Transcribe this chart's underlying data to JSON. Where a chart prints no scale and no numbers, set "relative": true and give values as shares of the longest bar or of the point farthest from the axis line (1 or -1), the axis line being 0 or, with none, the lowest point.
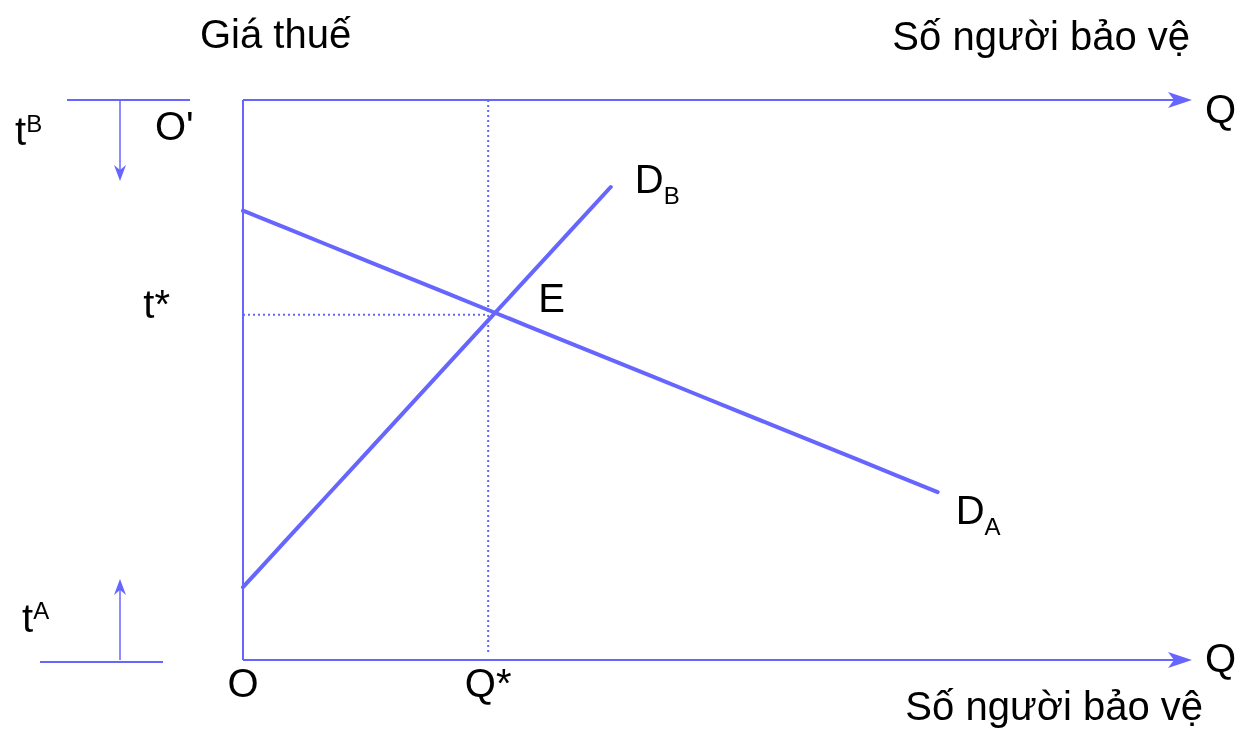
{
  "chart_data": {
    "type": "line",
    "relative": true,
    "ylabel": "Giá thuế",
    "xlabel": "Số người bảo vệ",
    "x2label": "Số người bảo vệ",
    "categories": [
      "O",
      null,
      null,
      null,
      null,
      null,
      "Q*",
      null,
      null,
      null,
      null,
      null,
      null,
      null,
      null,
      null,
      null,
      null
    ],
    "tick_labels": "x",
    "series": [
      {
        "name": "D$_{A}$",
        "color": "#6666ff",
        "values": [
          0.95,
          0.915,
          0.88,
          0.845,
          0.81,
          0.775,
          0.74,
          0.705,
          0.67,
          0.635,
          0.6,
          0.565,
          0.53,
          0.495,
          0.46,
          0.425,
          0.39,
          0.355
        ]
      },
      {
        "name": "D$_{B}$",
        "color": "#6666ff",
        "values": [
          0.154,
          0.248,
          0.342,
          0.436,
          0.53,
          0.624,
          0.718,
          0.812,
          0.906,
          1,
          null,
          null,
          null,
          null,
          null,
          null,
          null,
          null
        ]
      },
      {
        "color": "#6666ff",
        "line_style": "dotted",
        "values": [
          0.73,
          0.73,
          0.73,
          0.73,
          0.73,
          0.73,
          0.73,
          null,
          null,
          null,
          null,
          null,
          null,
          null,
          null,
          null,
          null,
          null
        ]
      }
    ],
    "ref_lines": [
      {
        "axis": "x",
        "value": "Q*",
        "color": "#6666ff",
        "line_style": "dotted"
      }
    ],
    "annotations": [
      {
        "text": "E",
        "x": "Q*",
        "y": 0.73
      },
      "t*",
      "O'",
      "t$^{B}$",
      "t$^{A}$",
      "Q",
      "Q"
    ]
  }
}
